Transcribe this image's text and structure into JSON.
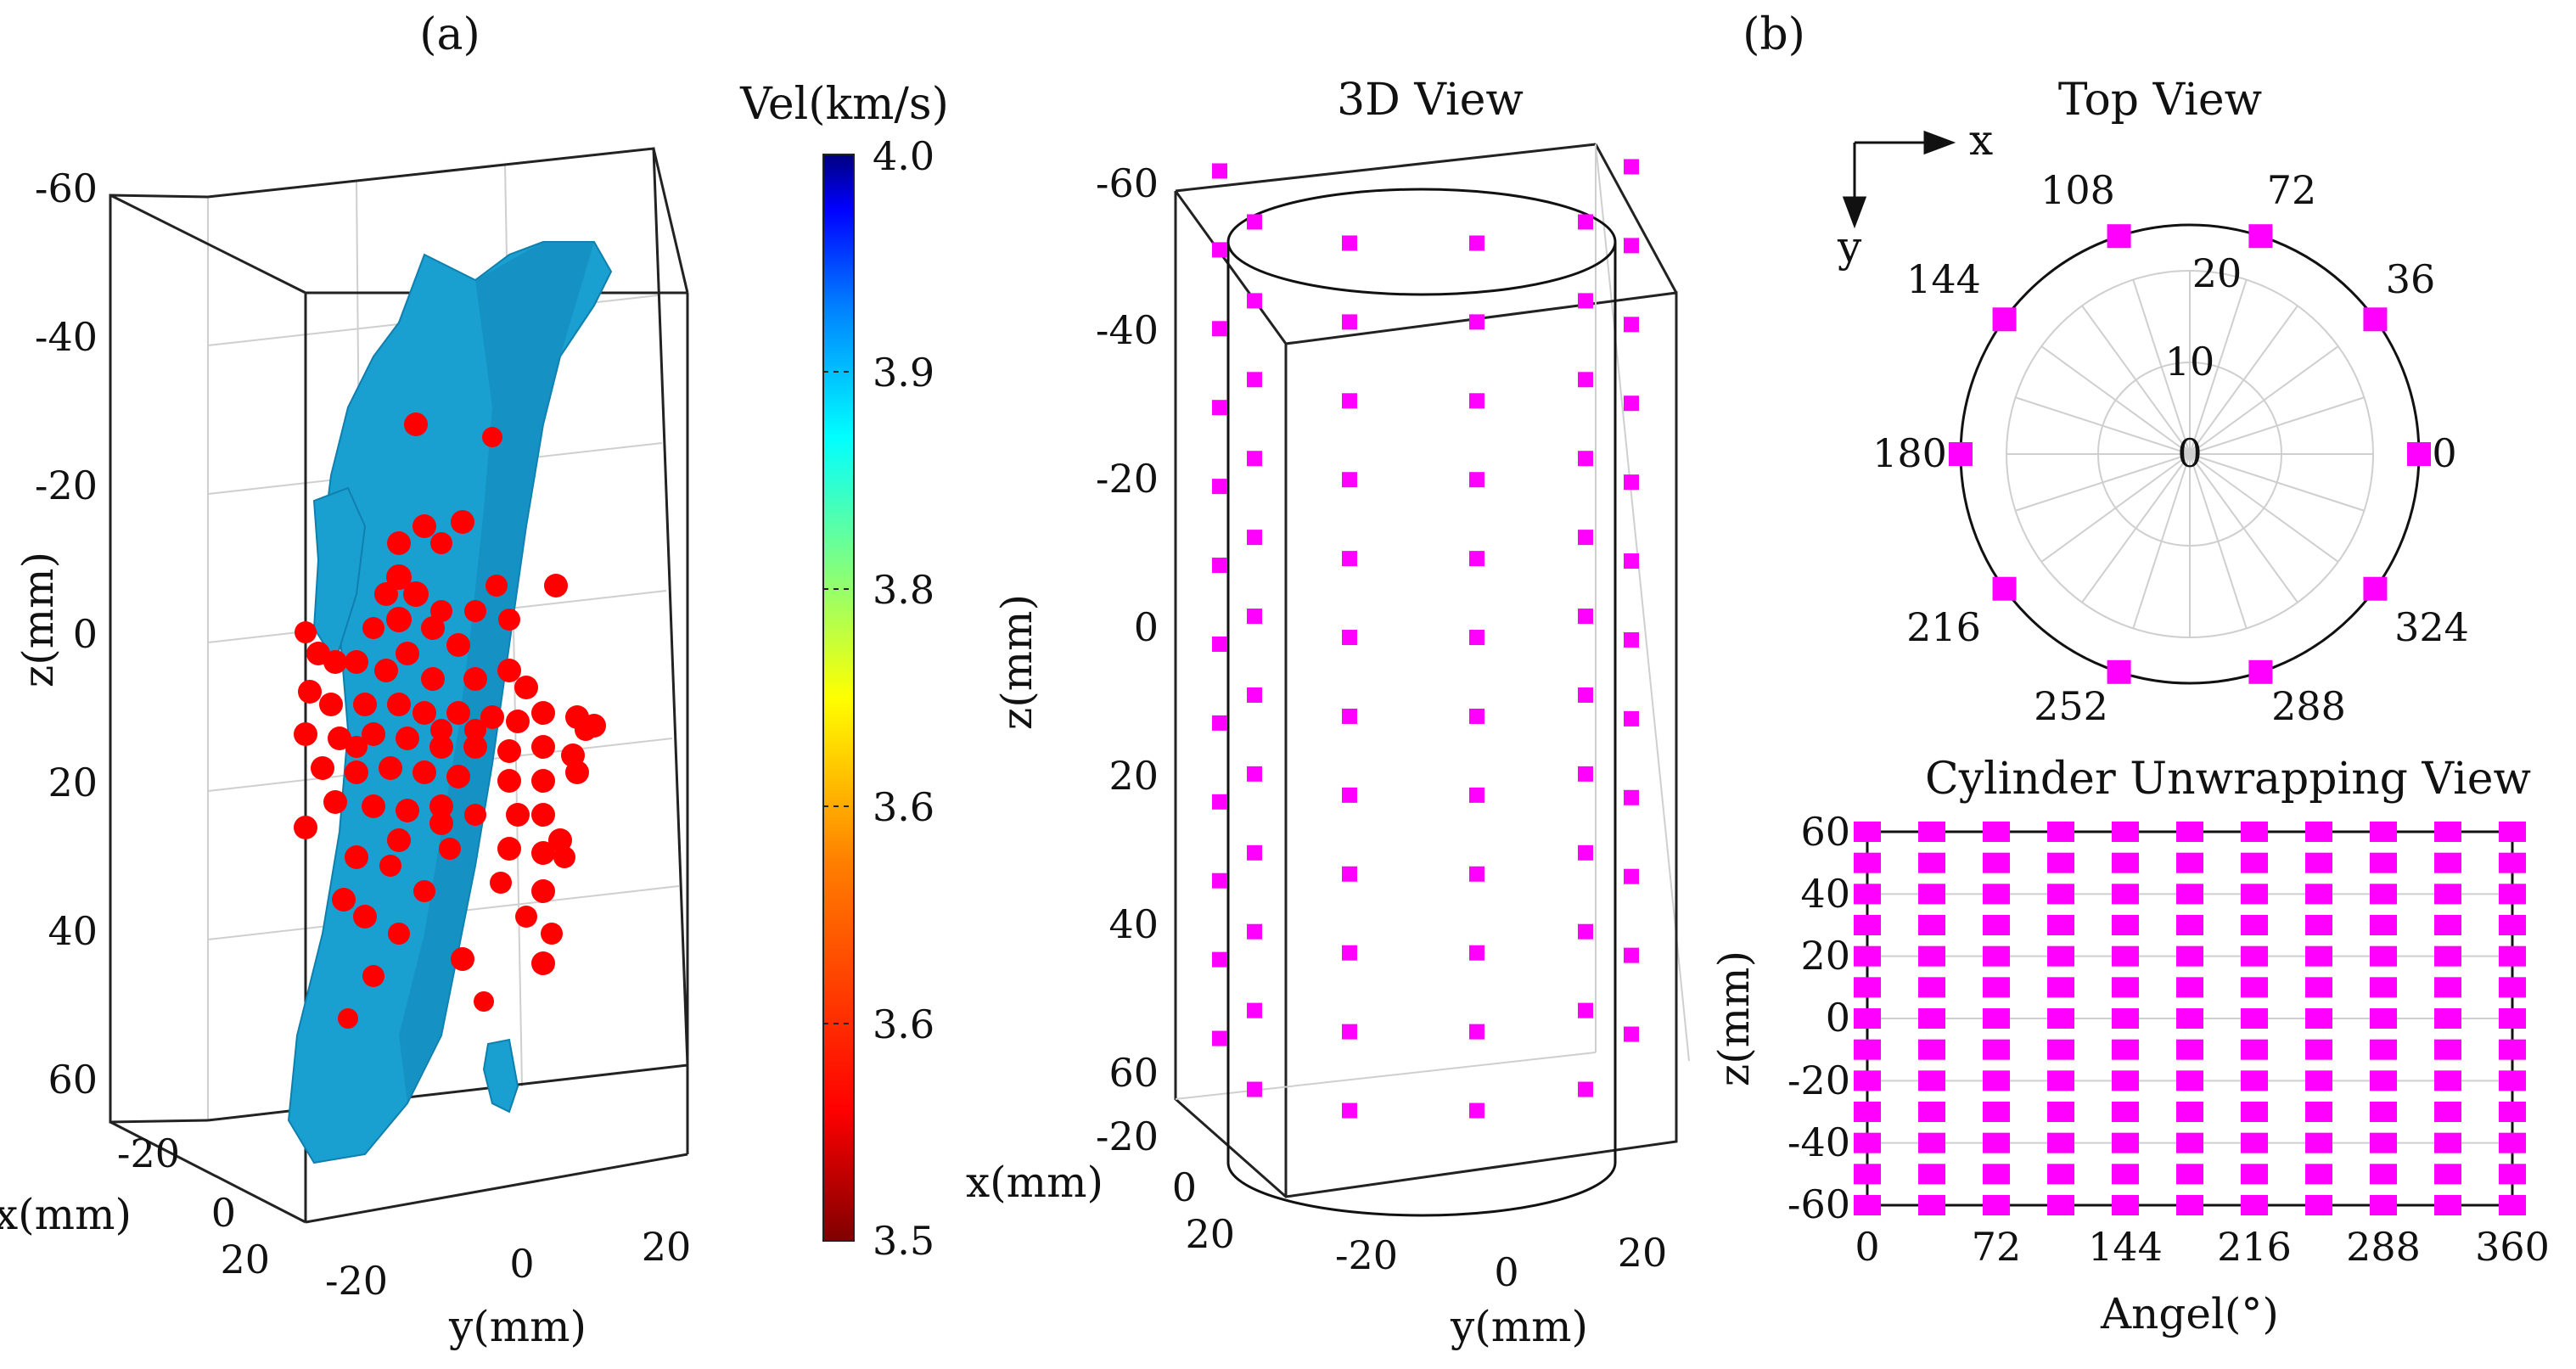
{
  "colors": {
    "sensor": "#ff00ff",
    "event": "#ff0000",
    "isosurface": "#1a9fd1"
  },
  "panel_labels": {
    "a": "(a)",
    "b": "(b)"
  },
  "chart_data": [
    {
      "id": "3d-velocity-isosurface",
      "type": "scatter",
      "title": "",
      "axes": {
        "x": {
          "label": "x(mm)",
          "ticks": [
            "-20",
            "0",
            "20"
          ]
        },
        "y": {
          "label": "y(mm)",
          "ticks": [
            "-20",
            "0",
            "20"
          ]
        },
        "z": {
          "label": "z(mm)",
          "ticks": [
            "-60",
            "-40",
            "-20",
            "0",
            "20",
            "40",
            "60"
          ],
          "range": [
            60,
            -60
          ]
        }
      },
      "series": [
        {
          "name": "AE events",
          "color": "#ff0000",
          "note": "approx. 130 red spheres clustered near z 0 to 40 mm"
        },
        {
          "name": "Velocity isosurface",
          "color": "#1a9fd1"
        }
      ]
    },
    {
      "id": "colorbar",
      "type": "heatmap",
      "title": "Vel(km/s)",
      "ticks": [
        "4.0",
        "3.9",
        "3.8",
        "3.6",
        "3.6",
        "3.5"
      ],
      "range": [
        3.5,
        4.0
      ],
      "colormap": [
        "#800000",
        "#ff0000",
        "#ff8000",
        "#ffff00",
        "#80ff80",
        "#00ffff",
        "#0080ff",
        "#0000ff",
        "#000080"
      ]
    },
    {
      "id": "3d-view",
      "type": "scatter",
      "title": "3D View",
      "axes": {
        "x": {
          "label": "x(mm)",
          "ticks": [
            "-20",
            "0",
            "20"
          ]
        },
        "y": {
          "label": "y(mm)",
          "ticks": [
            "-20",
            "0",
            "20"
          ]
        },
        "z": {
          "label": "z(mm)",
          "ticks": [
            "-60",
            "-40",
            "-20",
            "0",
            "20",
            "40",
            "60"
          ]
        }
      },
      "sensor_rings_z": [
        -55,
        -45,
        -35,
        -25,
        -15,
        -5,
        5,
        15,
        25,
        35,
        45,
        55
      ]
    },
    {
      "id": "top-view",
      "type": "scatter",
      "title": "Top View",
      "polar": true,
      "axis_arrows": {
        "x": "x",
        "y": "y"
      },
      "radial_ticks": [
        "0",
        "10",
        "20"
      ],
      "angle_labels": [
        "0",
        "36",
        "72",
        "108",
        "144",
        "180",
        "216",
        "252",
        "288",
        "324"
      ],
      "sensor_angles": [
        0,
        36,
        72,
        108,
        144,
        180,
        216,
        252,
        288,
        324
      ],
      "sensor_radius": 25
    },
    {
      "id": "unwrap-view",
      "type": "scatter",
      "title": "Cylinder Unwrapping View",
      "xlabel": "Angel(°)",
      "ylabel": "z(mm)",
      "x_ticks": [
        "0",
        "72",
        "144",
        "216",
        "288",
        "360"
      ],
      "y_ticks": [
        "60",
        "40",
        "20",
        "0",
        "-20",
        "-40",
        "-60"
      ],
      "xlim": [
        0,
        360
      ],
      "ylim": [
        -60,
        60
      ],
      "sensor_angles": [
        0,
        36,
        72,
        108,
        144,
        180,
        216,
        252,
        288,
        324,
        360
      ],
      "sensor_z": [
        -60,
        -50,
        -40,
        -30,
        -20,
        -10,
        0,
        10,
        20,
        30,
        40,
        50,
        60
      ]
    }
  ]
}
